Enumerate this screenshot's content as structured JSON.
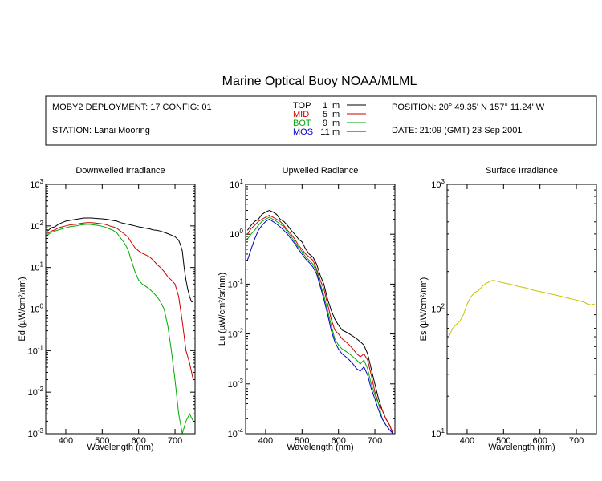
{
  "title": "Marine Optical Buoy NOAA/MLML",
  "info": {
    "deployment": "MOBY2 DEPLOYMENT: 17 CONFIG: 01",
    "station": "STATION: Lanai Mooring",
    "position": "POSITION: 20° 49.35' N   157° 11.24' W",
    "date": "DATE: 21:09 (GMT) 23 Sep 2001",
    "legend": [
      {
        "name": "TOP",
        "depth": "1",
        "unit": "m",
        "color": "#000000"
      },
      {
        "name": "MID",
        "depth": "5",
        "unit": "m",
        "color": "#cc0000"
      },
      {
        "name": "BOT",
        "depth": "9",
        "unit": "m",
        "color": "#00aa00"
      },
      {
        "name": "MOS",
        "depth": "11",
        "unit": "m",
        "color": "#0000cc"
      }
    ]
  },
  "colors": {
    "TOP": "#000000",
    "MID": "#cc0000",
    "BOT": "#00aa00",
    "MOS": "#0000cc",
    "surface": "#c8c000"
  },
  "chart_data": [
    {
      "type": "line",
      "title": "Downwelled Irradiance",
      "xlabel": "Wavelength (nm)",
      "ylabel": "Ed  (µW/cm²/nm)",
      "xlim": [
        345,
        755
      ],
      "ylim": [
        0.001,
        1000
      ],
      "yscale": "log",
      "xticks": [
        400,
        500,
        600,
        700
      ],
      "yticks": [
        {
          "exp": -3,
          "label": "10-3"
        },
        {
          "exp": -2,
          "label": "10-2"
        },
        {
          "exp": -1,
          "label": "10-1"
        },
        {
          "exp": 0,
          "label": "100"
        },
        {
          "exp": 1,
          "label": "101"
        },
        {
          "exp": 2,
          "label": "102"
        },
        {
          "exp": 3,
          "label": "103"
        }
      ],
      "series": [
        {
          "name": "TOP",
          "x": [
            350,
            360,
            370,
            380,
            390,
            400,
            410,
            420,
            430,
            440,
            450,
            460,
            470,
            480,
            490,
            500,
            510,
            520,
            530,
            540,
            550,
            560,
            570,
            580,
            590,
            600,
            610,
            620,
            630,
            640,
            650,
            660,
            670,
            680,
            690,
            700,
            710,
            715,
            720,
            725,
            730,
            735,
            740,
            745,
            750
          ],
          "y": [
            75,
            90,
            95,
            110,
            120,
            130,
            135,
            140,
            145,
            150,
            155,
            155,
            155,
            152,
            150,
            148,
            145,
            140,
            135,
            130,
            120,
            115,
            110,
            105,
            100,
            95,
            92,
            88,
            85,
            80,
            78,
            75,
            70,
            65,
            60,
            55,
            45,
            35,
            25,
            10,
            5,
            3,
            2,
            1.5,
            1.5
          ]
        },
        {
          "name": "MID",
          "x": [
            350,
            360,
            370,
            380,
            390,
            400,
            410,
            420,
            430,
            440,
            450,
            460,
            470,
            480,
            490,
            500,
            510,
            520,
            530,
            540,
            550,
            560,
            570,
            580,
            590,
            600,
            610,
            620,
            630,
            640,
            650,
            660,
            670,
            680,
            690,
            700,
            710,
            720,
            730,
            740,
            750
          ],
          "y": [
            65,
            75,
            80,
            90,
            95,
            100,
            105,
            108,
            110,
            115,
            118,
            120,
            120,
            118,
            115,
            112,
            108,
            100,
            95,
            88,
            75,
            65,
            55,
            40,
            30,
            25,
            22,
            20,
            18,
            15,
            12,
            10,
            8,
            6,
            5,
            4,
            2,
            0.5,
            0.1,
            0.05,
            0.02
          ]
        },
        {
          "name": "BOT",
          "x": [
            350,
            360,
            370,
            380,
            390,
            400,
            410,
            420,
            430,
            440,
            450,
            460,
            470,
            480,
            490,
            500,
            510,
            520,
            530,
            540,
            550,
            560,
            570,
            580,
            590,
            600,
            610,
            620,
            630,
            640,
            650,
            660,
            670,
            680,
            690,
            700,
            710,
            720,
            730,
            740,
            750
          ],
          "y": [
            60,
            70,
            75,
            80,
            85,
            90,
            95,
            98,
            100,
            105,
            108,
            110,
            108,
            105,
            102,
            98,
            92,
            85,
            78,
            68,
            52,
            40,
            28,
            15,
            8,
            5,
            4,
            3.5,
            3,
            2.5,
            2,
            1.5,
            1,
            0.4,
            0.1,
            0.02,
            0.003,
            0.001,
            0.002,
            0.003,
            0.002
          ]
        }
      ]
    },
    {
      "type": "line",
      "title": "Upwelled Radiance",
      "xlabel": "Wavelength (nm)",
      "ylabel": "Lu  (µW/cm²/sr/nm)",
      "xlim": [
        345,
        755
      ],
      "ylim": [
        0.0001,
        10
      ],
      "yscale": "log",
      "xticks": [
        400,
        500,
        600,
        700
      ],
      "yticks": [
        {
          "exp": -4,
          "label": "10-4"
        },
        {
          "exp": -3,
          "label": "10-3"
        },
        {
          "exp": -2,
          "label": "10-2"
        },
        {
          "exp": -1,
          "label": "10-1"
        },
        {
          "exp": 0,
          "label": "100"
        },
        {
          "exp": 1,
          "label": "101"
        }
      ],
      "series": [
        {
          "name": "TOP",
          "x": [
            350,
            360,
            370,
            380,
            390,
            400,
            410,
            420,
            430,
            440,
            450,
            460,
            470,
            480,
            490,
            500,
            510,
            520,
            530,
            540,
            550,
            560,
            570,
            580,
            590,
            600,
            610,
            620,
            630,
            640,
            650,
            660,
            670,
            680,
            690,
            700,
            710,
            720,
            730,
            740,
            750
          ],
          "y": [
            1.2,
            1.5,
            1.8,
            2.0,
            2.5,
            2.8,
            3.0,
            2.8,
            2.5,
            2.0,
            1.8,
            1.5,
            1.2,
            1.0,
            0.8,
            0.7,
            0.5,
            0.4,
            0.35,
            0.25,
            0.15,
            0.1,
            0.05,
            0.03,
            0.02,
            0.015,
            0.012,
            0.011,
            0.01,
            0.009,
            0.008,
            0.007,
            0.006,
            0.004,
            0.002,
            0.001,
            0.0005,
            0.0003,
            0.0002,
            0.00015,
            0.0001
          ]
        },
        {
          "name": "MID",
          "x": [
            350,
            360,
            370,
            380,
            390,
            400,
            410,
            420,
            430,
            440,
            450,
            460,
            470,
            480,
            490,
            500,
            510,
            520,
            530,
            540,
            550,
            560,
            570,
            580,
            590,
            600,
            610,
            620,
            630,
            640,
            650,
            660,
            670,
            680,
            690,
            700,
            710,
            720,
            730,
            740,
            750
          ],
          "y": [
            1.0,
            1.3,
            1.5,
            1.8,
            2.0,
            2.2,
            2.4,
            2.2,
            2.0,
            1.8,
            1.5,
            1.2,
            1.0,
            0.8,
            0.6,
            0.5,
            0.4,
            0.35,
            0.3,
            0.2,
            0.12,
            0.08,
            0.04,
            0.02,
            0.012,
            0.01,
            0.008,
            0.007,
            0.006,
            0.005,
            0.004,
            0.0035,
            0.004,
            0.003,
            0.0015,
            0.0007,
            0.0004,
            0.0003,
            0.0002,
            0.00015,
            0.0001
          ]
        },
        {
          "name": "BOT",
          "x": [
            350,
            360,
            370,
            380,
            390,
            400,
            410,
            420,
            430,
            440,
            450,
            460,
            470,
            480,
            490,
            500,
            510,
            520,
            530,
            540,
            550,
            560,
            570,
            580,
            590,
            600,
            610,
            620,
            630,
            640,
            650,
            660,
            670,
            680,
            690,
            700,
            710,
            720,
            730,
            740,
            750
          ],
          "y": [
            0.8,
            1.0,
            1.2,
            1.5,
            1.8,
            2.0,
            2.2,
            2.0,
            1.8,
            1.6,
            1.4,
            1.1,
            0.9,
            0.7,
            0.55,
            0.45,
            0.35,
            0.3,
            0.25,
            0.18,
            0.1,
            0.06,
            0.03,
            0.015,
            0.008,
            0.006,
            0.005,
            0.0045,
            0.004,
            0.0035,
            0.003,
            0.0025,
            0.003,
            0.002,
            0.001,
            0.0006,
            0.0004,
            0.0002,
            0.00015,
            0.00012,
            0.0001
          ]
        },
        {
          "name": "MOS",
          "x": [
            350,
            360,
            370,
            380,
            390,
            400,
            410,
            420,
            430,
            440,
            450,
            460,
            470,
            480,
            490,
            500,
            510,
            520,
            530,
            540,
            550,
            560,
            570,
            580,
            590,
            600,
            610,
            620,
            630,
            640,
            650,
            660,
            670,
            680,
            690,
            700,
            710,
            720,
            730,
            740,
            750
          ],
          "y": [
            0.3,
            0.5,
            0.8,
            1.2,
            1.5,
            1.8,
            2.0,
            1.8,
            1.6,
            1.4,
            1.2,
            1.0,
            0.8,
            0.65,
            0.5,
            0.4,
            0.32,
            0.27,
            0.22,
            0.16,
            0.09,
            0.05,
            0.025,
            0.012,
            0.007,
            0.005,
            0.004,
            0.0035,
            0.003,
            0.0025,
            0.002,
            0.0018,
            0.0022,
            0.0015,
            0.0008,
            0.0005,
            0.0003,
            0.0002,
            0.00015,
            0.00012,
            0.0001
          ]
        }
      ]
    },
    {
      "type": "line",
      "title": "Surface Irradiance",
      "xlabel": "Wavelength (nm)",
      "ylabel": "Es  (µW/cm²/nm)",
      "xlim": [
        345,
        755
      ],
      "ylim": [
        10,
        1000
      ],
      "yscale": "log",
      "xticks": [
        400,
        500,
        600,
        700
      ],
      "yticks": [
        {
          "exp": 1,
          "label": "101"
        },
        {
          "exp": 2,
          "label": "102"
        },
        {
          "exp": 3,
          "label": "103"
        }
      ],
      "series": [
        {
          "name": "Es",
          "x": [
            350,
            360,
            370,
            380,
            390,
            400,
            410,
            420,
            430,
            440,
            450,
            460,
            470,
            480,
            490,
            500,
            510,
            520,
            530,
            540,
            550,
            560,
            570,
            580,
            590,
            600,
            610,
            620,
            630,
            640,
            650,
            660,
            670,
            680,
            690,
            700,
            710,
            720,
            730,
            740,
            750
          ],
          "y": [
            60,
            70,
            75,
            80,
            90,
            110,
            125,
            135,
            140,
            150,
            160,
            165,
            170,
            168,
            165,
            162,
            160,
            158,
            155,
            152,
            150,
            148,
            145,
            142,
            140,
            138,
            136,
            134,
            132,
            130,
            128,
            126,
            124,
            122,
            120,
            118,
            116,
            114,
            110,
            108,
            110
          ]
        }
      ]
    }
  ]
}
